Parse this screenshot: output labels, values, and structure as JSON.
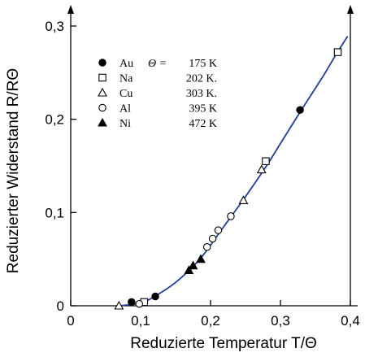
{
  "chart_data": {
    "type": "scatter",
    "title": "",
    "xlabel": "Reduzierte Temperatur T/Θ",
    "ylabel": "Reduzierter Widerstand R/RΘ",
    "xlim": [
      0,
      0.4
    ],
    "ylim": [
      0,
      0.3
    ],
    "x_ticks": [
      "0",
      "0,1",
      "0,2",
      "0,3",
      "0,4"
    ],
    "y_ticks": [
      "0",
      "0,1",
      "0,2",
      "0,3"
    ],
    "grid": false,
    "legend_position": "top-left",
    "legend_theta_label": "Θ =",
    "legend": [
      {
        "symbol": "Au",
        "theta": "175 K",
        "marker": "filled-circle"
      },
      {
        "symbol": "Na",
        "theta": "202 K.",
        "marker": "open-square"
      },
      {
        "symbol": "Cu",
        "theta": "303 K.",
        "marker": "open-triangle"
      },
      {
        "symbol": "Al",
        "theta": "395 K",
        "marker": "open-circle"
      },
      {
        "symbol": "Ni",
        "theta": "472 K",
        "marker": "filled-triangle"
      }
    ],
    "series": [
      {
        "name": "Au",
        "marker": "filled-circle",
        "points": [
          [
            0.087,
            0.004
          ],
          [
            0.121,
            0.01
          ],
          [
            0.328,
            0.21
          ]
        ]
      },
      {
        "name": "Na",
        "marker": "open-square",
        "points": [
          [
            0.105,
            0.004
          ],
          [
            0.279,
            0.155
          ],
          [
            0.382,
            0.272
          ]
        ]
      },
      {
        "name": "Cu",
        "marker": "open-triangle",
        "points": [
          [
            0.069,
            0.0
          ],
          [
            0.273,
            0.146
          ],
          [
            0.247,
            0.113
          ]
        ]
      },
      {
        "name": "Al",
        "marker": "open-circle",
        "points": [
          [
            0.098,
            0.002
          ],
          [
            0.195,
            0.063
          ],
          [
            0.203,
            0.072
          ],
          [
            0.211,
            0.081
          ],
          [
            0.229,
            0.096
          ]
        ]
      },
      {
        "name": "Ni",
        "marker": "filled-triangle",
        "points": [
          [
            0.169,
            0.038
          ],
          [
            0.175,
            0.043
          ],
          [
            0.186,
            0.05
          ]
        ]
      }
    ],
    "curve": [
      [
        0.07,
        0.0
      ],
      [
        0.1,
        0.003
      ],
      [
        0.12,
        0.01
      ],
      [
        0.15,
        0.025
      ],
      [
        0.18,
        0.046
      ],
      [
        0.2,
        0.065
      ],
      [
        0.22,
        0.086
      ],
      [
        0.25,
        0.117
      ],
      [
        0.28,
        0.15
      ],
      [
        0.3,
        0.174
      ],
      [
        0.33,
        0.21
      ],
      [
        0.36,
        0.245
      ],
      [
        0.38,
        0.27
      ],
      [
        0.396,
        0.289
      ]
    ],
    "curve_color": "#1f3f99"
  }
}
